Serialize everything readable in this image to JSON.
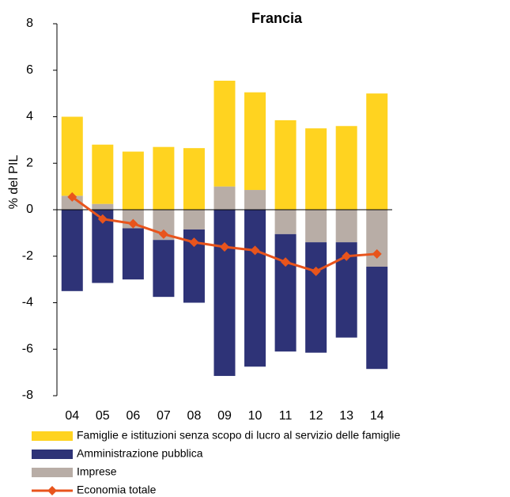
{
  "chart_data": {
    "type": "bar",
    "stacked": true,
    "title": "Francia",
    "y_label": "% del PIL",
    "categories": [
      "04",
      "05",
      "06",
      "07",
      "08",
      "09",
      "10",
      "11",
      "12",
      "13",
      "14"
    ],
    "series": [
      {
        "name": "Famiglie e istituzioni senza scopo di lucro al servizio delle famiglie",
        "color": "#ffd320",
        "type": "bar",
        "values": [
          3.4,
          2.55,
          2.5,
          2.7,
          2.65,
          4.55,
          4.2,
          3.85,
          3.5,
          3.6,
          5.0
        ]
      },
      {
        "name": "Amministrazione pubblica",
        "color": "#2e3377",
        "type": "bar",
        "values": [
          -3.5,
          -3.15,
          -2.2,
          -2.45,
          -3.15,
          -7.15,
          -6.75,
          -5.05,
          -4.75,
          -4.1,
          -4.4
        ]
      },
      {
        "name": "Imprese",
        "color": "#b8ada6",
        "type": "bar",
        "values": [
          0.6,
          0.25,
          -0.8,
          -1.3,
          -0.85,
          1.0,
          0.85,
          -1.05,
          -1.4,
          -1.4,
          -2.45
        ]
      },
      {
        "name": "Economia totale",
        "color": "#e8541c",
        "type": "line",
        "values": [
          0.55,
          -0.4,
          -0.6,
          -1.05,
          -1.4,
          -1.6,
          -1.75,
          -2.25,
          -2.65,
          -2.0,
          -1.9
        ]
      }
    ],
    "ylim": [
      -8,
      8
    ],
    "yticks": [
      -8,
      -6,
      -4,
      -2,
      0,
      2,
      4,
      6,
      8
    ]
  }
}
